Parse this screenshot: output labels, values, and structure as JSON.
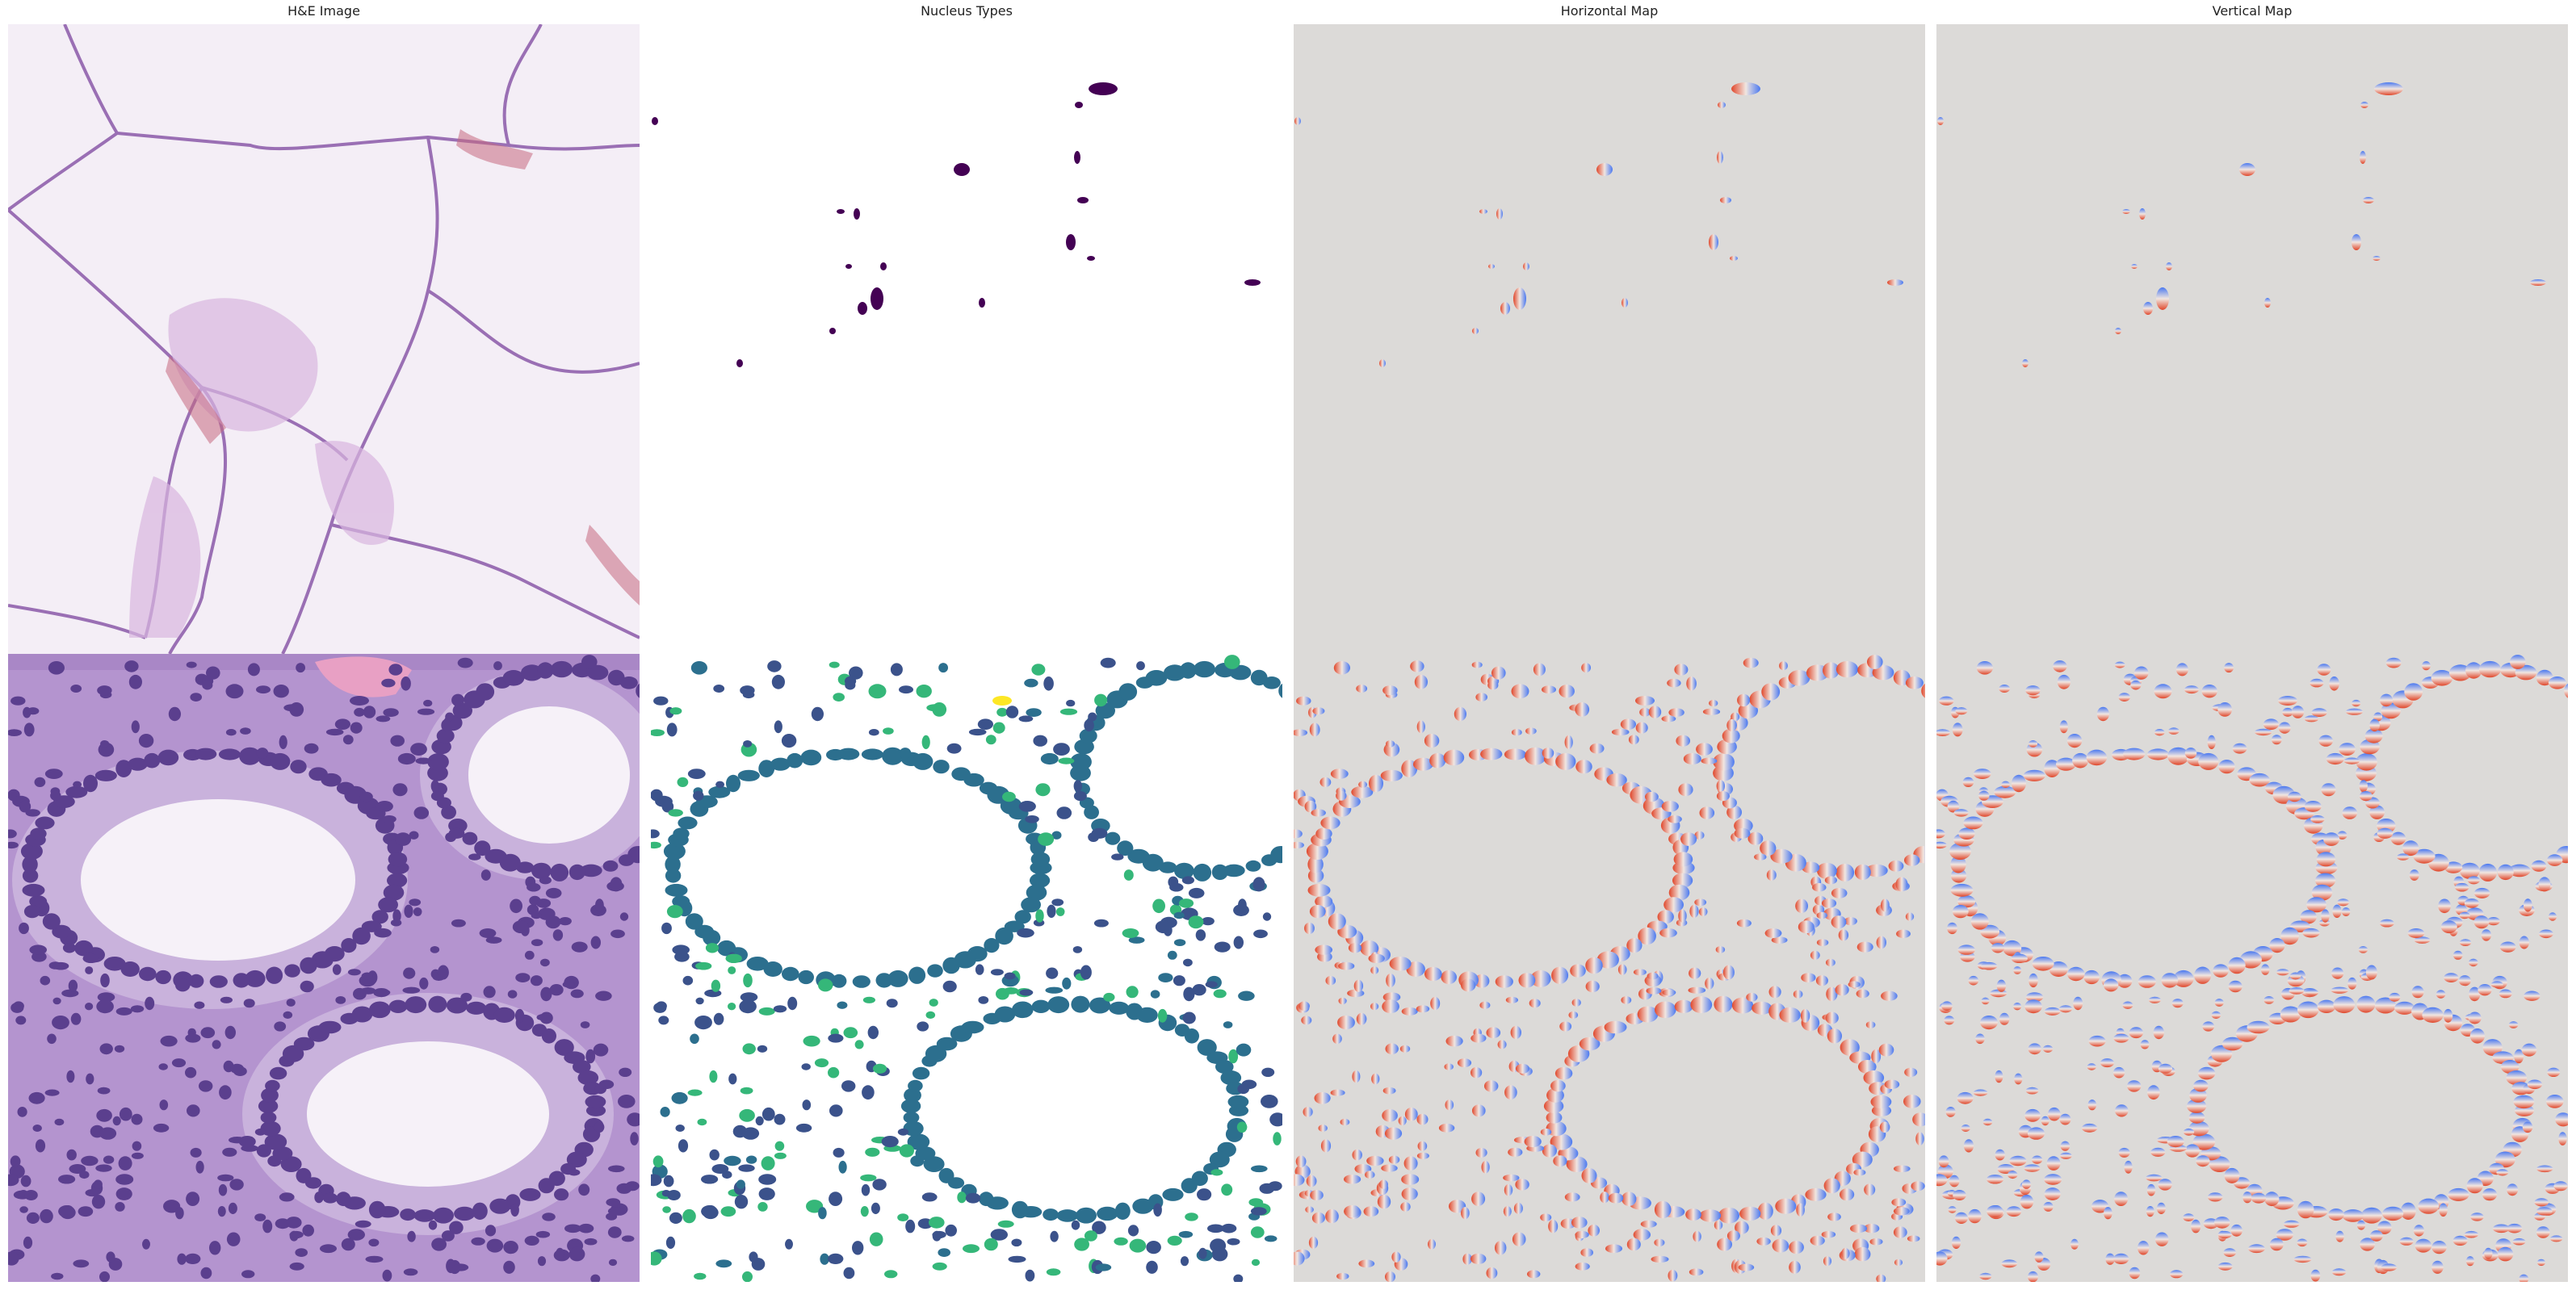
{
  "figure": {
    "panels": [
      {
        "title": "H&E Image",
        "content": "histology-rgb"
      },
      {
        "title": "Nucleus Types",
        "content": "nucleus-type-map"
      },
      {
        "title": "Horizontal Map",
        "content": "horizontal-distance-map"
      },
      {
        "title": "Vertical Map",
        "content": "vertical-distance-map"
      }
    ],
    "colors": {
      "he_background": "#f3ecf4",
      "he_lower_tissue": "#b28fcd",
      "he_nucleus": "#5b3f8e",
      "he_goblet": "#f6f1f8",
      "map_background": "#dcdad8",
      "type_1": "#440154",
      "type_2": "#3b528b",
      "type_3": "#2c6f8e",
      "type_4": "#35b779",
      "type_5": "#fde725",
      "map_low": "#4a78f0",
      "map_high": "#e0462a"
    }
  }
}
